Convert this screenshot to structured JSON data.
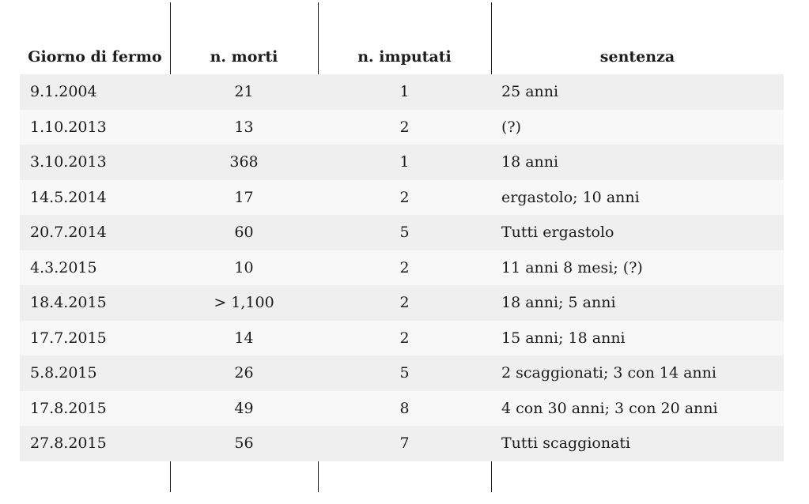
{
  "colors": {
    "stripe_odd": "#efefef",
    "stripe_even": "#f8f8f8",
    "line": "#1c1c1c",
    "text": "#1c1c1c",
    "background": "#ffffff"
  },
  "table": {
    "columns": [
      {
        "label": "Giorno di fermo"
      },
      {
        "label": "n. morti"
      },
      {
        "label": "n. imputati"
      },
      {
        "label": "sentenza"
      }
    ],
    "rows": [
      [
        "9.1.2004",
        "21",
        "1",
        "25 anni"
      ],
      [
        "1.10.2013",
        "13",
        "2",
        "(?)"
      ],
      [
        "3.10.2013",
        "368",
        "1",
        "18 anni"
      ],
      [
        "14.5.2014",
        "17",
        "2",
        "ergastolo; 10 anni"
      ],
      [
        "20.7.2014",
        "60",
        "5",
        "Tutti ergastolo"
      ],
      [
        "4.3.2015",
        "10",
        "2",
        "11 anni 8 mesi; (?)"
      ],
      [
        "18.4.2015",
        "> 1,100",
        "2",
        "18 anni; 5 anni"
      ],
      [
        "17.7.2015",
        "14",
        "2",
        "15 anni; 18 anni"
      ],
      [
        "5.8.2015",
        "26",
        "5",
        "2 scaggionati; 3 con 14 anni"
      ],
      [
        "17.8.2015",
        "49",
        "8",
        "4 con 30 anni; 3 con 20 anni"
      ],
      [
        "27.8.2015",
        "56",
        "7",
        "Tutti scaggionati"
      ]
    ]
  }
}
